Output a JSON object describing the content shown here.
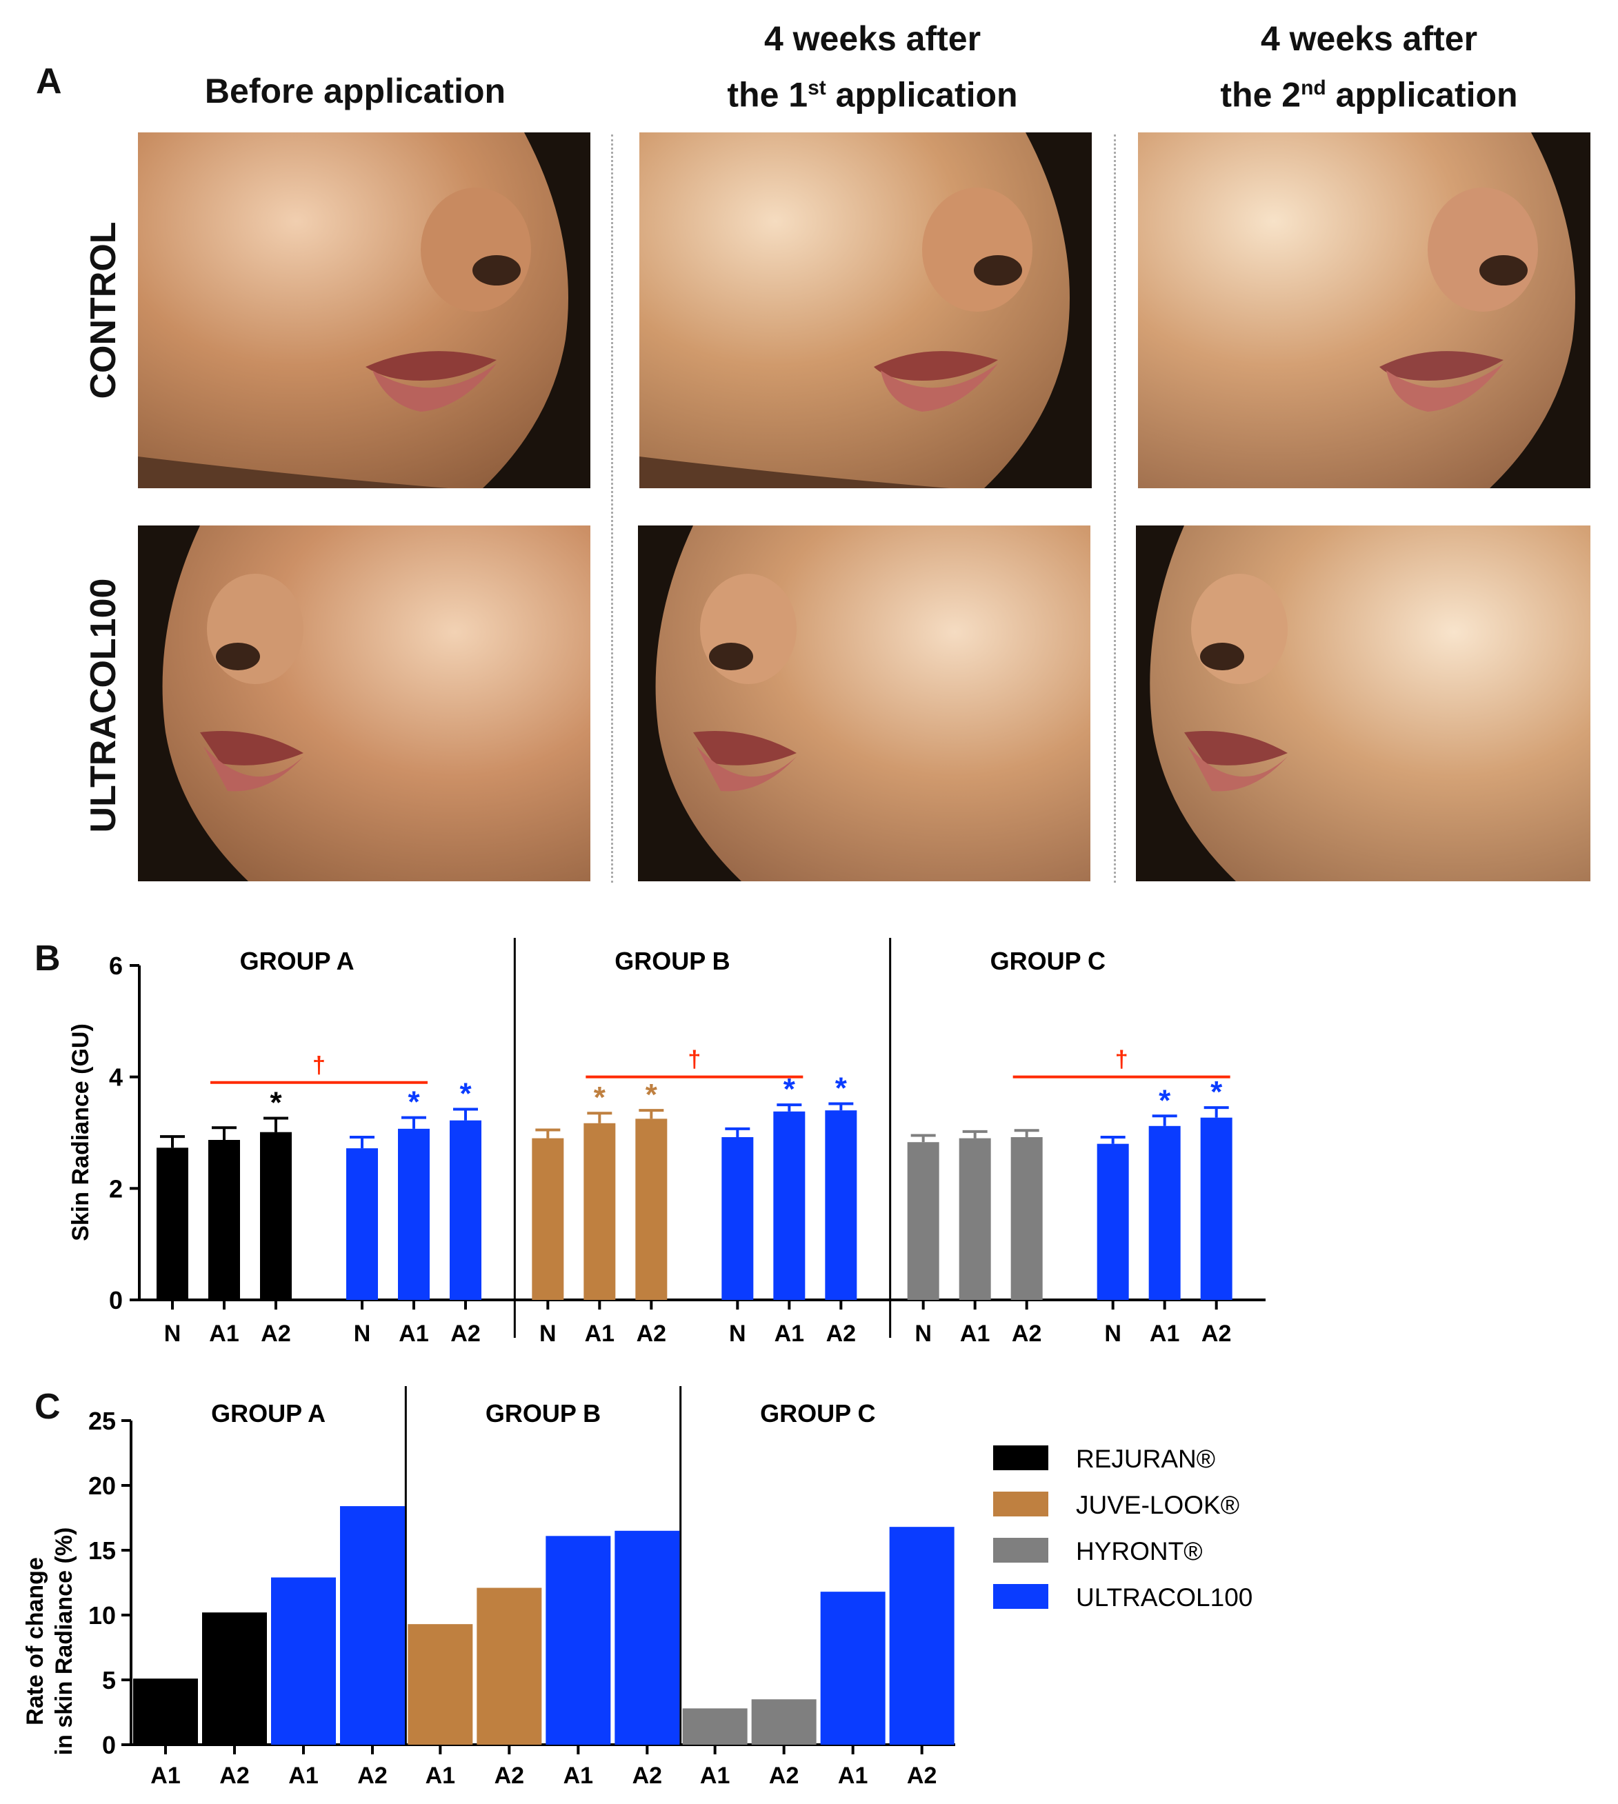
{
  "panel_a": {
    "letter": "A",
    "columns": [
      "Before application",
      "4 weeks after",
      "the 1",
      "st",
      " application",
      "4 weeks after",
      "the 2",
      "nd",
      " application"
    ],
    "col1": "Before application",
    "col2_line1": "4 weeks after",
    "col2_line2_pre": "the 1",
    "col2_sup": "st",
    "col2_line2_post": " application",
    "col3_line1": "4 weeks after",
    "col3_line2_pre": "the 2",
    "col3_sup": "nd",
    "col3_line2_post": " application",
    "row1": "CONTROL",
    "row2": "ULTRACOL100"
  },
  "colors": {
    "rejuran": "#000000",
    "juvelook": "#bf8040",
    "hyront": "#7f7f7f",
    "ultracol": "#0a3cff",
    "sig_red": "#ff2a00"
  },
  "chart_data": [
    {
      "panel": "B",
      "type": "bar",
      "ylabel": "Skin Radiance (GU)",
      "ylim": [
        0,
        6
      ],
      "yticks": [
        0,
        2,
        4,
        6
      ],
      "group_titles": [
        "GROUP A",
        "GROUP B",
        "GROUP C"
      ],
      "groups": [
        {
          "bars": [
            {
              "label": "N",
              "value": 2.73,
              "err": 0.2,
              "color": "rejuran",
              "star": ""
            },
            {
              "label": "A1",
              "value": 2.87,
              "err": 0.22,
              "color": "rejuran",
              "star": ""
            },
            {
              "label": "A2",
              "value": 3.01,
              "err": 0.25,
              "color": "rejuran",
              "star": "*"
            },
            {
              "label": "N",
              "value": 2.72,
              "err": 0.2,
              "color": "ultracol",
              "star": ""
            },
            {
              "label": "A1",
              "value": 3.07,
              "err": 0.2,
              "color": "ultracol",
              "star": "*"
            },
            {
              "label": "A2",
              "value": 3.22,
              "err": 0.2,
              "color": "ultracol",
              "star": "*"
            }
          ],
          "dagger": {
            "from": 1,
            "to": 4,
            "y": 3.9,
            "symbol": "†"
          }
        },
        {
          "bars": [
            {
              "label": "N",
              "value": 2.9,
              "err": 0.15,
              "color": "juvelook",
              "star": ""
            },
            {
              "label": "A1",
              "value": 3.17,
              "err": 0.18,
              "color": "juvelook",
              "star": "*"
            },
            {
              "label": "A2",
              "value": 3.25,
              "err": 0.15,
              "color": "juvelook",
              "star": "*"
            },
            {
              "label": "N",
              "value": 2.92,
              "err": 0.15,
              "color": "ultracol",
              "star": ""
            },
            {
              "label": "A1",
              "value": 3.38,
              "err": 0.12,
              "color": "ultracol",
              "star": "*"
            },
            {
              "label": "A2",
              "value": 3.4,
              "err": 0.12,
              "color": "ultracol",
              "star": "*"
            }
          ],
          "dagger": {
            "from": 1,
            "to": 4,
            "y": 4.0,
            "symbol": "†"
          }
        },
        {
          "bars": [
            {
              "label": "N",
              "value": 2.83,
              "err": 0.12,
              "color": "hyront",
              "star": ""
            },
            {
              "label": "A1",
              "value": 2.9,
              "err": 0.12,
              "color": "hyront",
              "star": ""
            },
            {
              "label": "A2",
              "value": 2.92,
              "err": 0.12,
              "color": "hyront",
              "star": ""
            },
            {
              "label": "N",
              "value": 2.8,
              "err": 0.12,
              "color": "ultracol",
              "star": ""
            },
            {
              "label": "A1",
              "value": 3.12,
              "err": 0.18,
              "color": "ultracol",
              "star": "*"
            },
            {
              "label": "A2",
              "value": 3.27,
              "err": 0.18,
              "color": "ultracol",
              "star": "*"
            }
          ],
          "dagger": {
            "from": 2,
            "to": 5,
            "y": 4.0,
            "symbol": "†"
          }
        }
      ]
    },
    {
      "panel": "C",
      "type": "bar",
      "ylabel": [
        "Rate of change",
        "in skin Radiance (%)"
      ],
      "ylim": [
        0,
        25
      ],
      "yticks": [
        0,
        5,
        10,
        15,
        20,
        25
      ],
      "group_titles": [
        "GROUP A",
        "GROUP B",
        "GROUP C"
      ],
      "groups": [
        {
          "bars": [
            {
              "label": "A1",
              "value": 5.1,
              "color": "rejuran"
            },
            {
              "label": "A2",
              "value": 10.2,
              "color": "rejuran"
            },
            {
              "label": "A1",
              "value": 12.9,
              "color": "ultracol"
            },
            {
              "label": "A2",
              "value": 18.4,
              "color": "ultracol"
            }
          ]
        },
        {
          "bars": [
            {
              "label": "A1",
              "value": 9.3,
              "color": "juvelook"
            },
            {
              "label": "A2",
              "value": 12.1,
              "color": "juvelook"
            },
            {
              "label": "A1",
              "value": 16.1,
              "color": "ultracol"
            },
            {
              "label": "A2",
              "value": 16.5,
              "color": "ultracol"
            }
          ]
        },
        {
          "bars": [
            {
              "label": "A1",
              "value": 2.8,
              "color": "hyront"
            },
            {
              "label": "A2",
              "value": 3.5,
              "color": "hyront"
            },
            {
              "label": "A1",
              "value": 11.8,
              "color": "ultracol"
            },
            {
              "label": "A2",
              "value": 16.8,
              "color": "ultracol"
            }
          ]
        }
      ],
      "legend": [
        {
          "label": "REJURAN®",
          "color": "rejuran"
        },
        {
          "label": "JUVE-LOOK®",
          "color": "juvelook"
        },
        {
          "label": "HYRONT®",
          "color": "hyront"
        },
        {
          "label": "ULTRACOL100",
          "color": "ultracol"
        }
      ]
    }
  ]
}
